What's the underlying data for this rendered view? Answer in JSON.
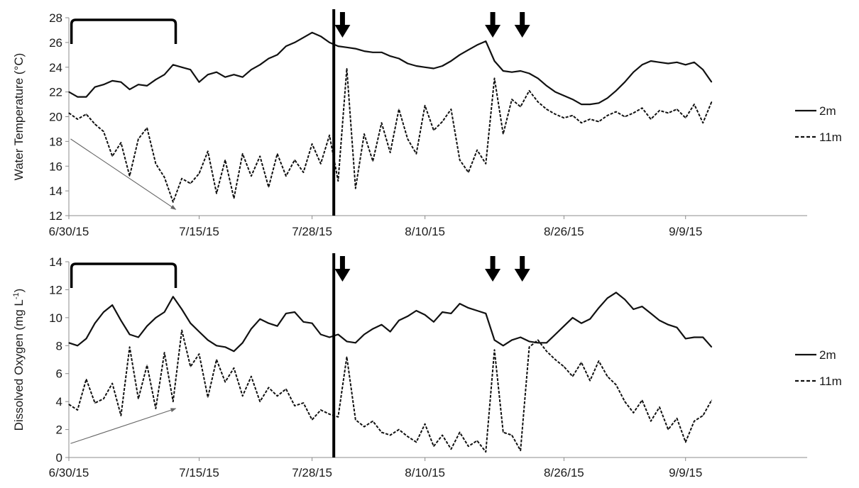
{
  "chart_data": [
    {
      "type": "line",
      "ylabel": "Water Temperature (°C)",
      "ylim": [
        12,
        28
      ],
      "yticks": [
        "12",
        "14",
        "16",
        "18",
        "20",
        "22",
        "24",
        "26",
        "28"
      ],
      "x_ticks": [
        "6/30/15",
        "7/15/15",
        "7/28/15",
        "8/10/15",
        "8/26/15",
        "9/9/15"
      ],
      "x_tick_days": [
        0,
        15,
        28,
        41,
        57,
        71
      ],
      "xlim_days": [
        0,
        85
      ],
      "grid": false,
      "legend_position": "right",
      "vline_day": 30.5,
      "arrow_days": [
        31.5,
        48.8,
        52.2
      ],
      "bracket_days": [
        0.3,
        12.3
      ],
      "series": [
        {
          "name": "2m",
          "style": "solid",
          "x": [
            0,
            1,
            2,
            3,
            4,
            5,
            6,
            7,
            8,
            9,
            10,
            11,
            12,
            13,
            14,
            15,
            16,
            17,
            18,
            19,
            20,
            21,
            22,
            23,
            24,
            25,
            26,
            27,
            28,
            29,
            30,
            31,
            32,
            33,
            34,
            35,
            36,
            37,
            38,
            39,
            40,
            41,
            42,
            43,
            44,
            45,
            46,
            47,
            48,
            49,
            50,
            51,
            52,
            53,
            54,
            55,
            56,
            57,
            58,
            59,
            60,
            61,
            62,
            63,
            64,
            65,
            66,
            67,
            68,
            69,
            70,
            71,
            72,
            73,
            74
          ],
          "y": [
            22.0,
            21.6,
            21.6,
            22.4,
            22.6,
            22.9,
            22.8,
            22.2,
            22.6,
            22.5,
            23.0,
            23.4,
            24.2,
            24.0,
            23.8,
            22.8,
            23.4,
            23.6,
            23.2,
            23.4,
            23.2,
            23.8,
            24.2,
            24.7,
            25.0,
            25.7,
            26.0,
            26.4,
            26.8,
            26.5,
            26.0,
            25.7,
            25.6,
            25.5,
            25.3,
            25.2,
            25.2,
            24.9,
            24.7,
            24.3,
            24.1,
            24.0,
            23.9,
            24.1,
            24.5,
            25.0,
            25.4,
            25.8,
            26.1,
            24.5,
            23.7,
            23.6,
            23.7,
            23.5,
            23.1,
            22.5,
            22.0,
            21.7,
            21.4,
            21.0,
            21.0,
            21.1,
            21.5,
            22.1,
            22.8,
            23.6,
            24.2,
            24.5,
            24.4,
            24.3,
            24.4,
            24.2,
            24.4,
            23.8,
            22.8
          ]
        },
        {
          "name": "11m",
          "style": "dashed",
          "x": [
            0,
            1,
            2,
            3,
            4,
            5,
            6,
            7,
            8,
            9,
            10,
            11,
            12,
            13,
            14,
            15,
            16,
            17,
            18,
            19,
            20,
            21,
            22,
            23,
            24,
            25,
            26,
            27,
            28,
            29,
            30,
            31,
            32,
            33,
            34,
            35,
            36,
            37,
            38,
            39,
            40,
            41,
            42,
            43,
            44,
            45,
            46,
            47,
            48,
            49,
            50,
            51,
            52,
            53,
            54,
            55,
            56,
            57,
            58,
            59,
            60,
            61,
            62,
            63,
            64,
            65,
            66,
            67,
            68,
            69,
            70,
            71,
            72,
            73,
            74
          ],
          "y": [
            20.3,
            19.8,
            20.2,
            19.4,
            18.8,
            16.8,
            17.9,
            15.2,
            18.2,
            19.1,
            16.2,
            15.1,
            13.1,
            15.0,
            14.6,
            15.4,
            17.2,
            13.8,
            16.5,
            13.4,
            17.0,
            15.2,
            16.8,
            14.3,
            17.0,
            15.2,
            16.5,
            15.5,
            17.8,
            16.2,
            18.5,
            14.8,
            23.9,
            14.2,
            18.6,
            16.4,
            19.5,
            17.1,
            20.6,
            18.2,
            17.0,
            20.9,
            18.9,
            19.6,
            20.6,
            16.5,
            15.5,
            17.3,
            16.2,
            23.1,
            18.6,
            21.4,
            20.8,
            22.1,
            21.2,
            20.6,
            20.2,
            19.9,
            20.1,
            19.5,
            19.8,
            19.6,
            20.1,
            20.4,
            20.0,
            20.3,
            20.7,
            19.8,
            20.5,
            20.3,
            20.6,
            19.9,
            21.0,
            19.5,
            21.2
          ]
        }
      ]
    },
    {
      "type": "line",
      "ylabel": "Dissolved Oxygen (mg L",
      "ylabel_sup": "-1",
      "ylabel_close": ")",
      "ylim": [
        0,
        14
      ],
      "yticks": [
        "0",
        "2",
        "4",
        "6",
        "8",
        "10",
        "12",
        "14"
      ],
      "x_ticks": [
        "6/30/15",
        "7/15/15",
        "7/28/15",
        "8/10/15",
        "8/26/15",
        "9/9/15"
      ],
      "x_tick_days": [
        0,
        15,
        28,
        41,
        57,
        71
      ],
      "xlim_days": [
        0,
        85
      ],
      "grid": false,
      "legend_position": "right",
      "vline_day": 30.5,
      "arrow_days": [
        31.5,
        48.8,
        52.2
      ],
      "bracket_days": [
        0.3,
        12.3
      ],
      "series": [
        {
          "name": "2m",
          "style": "solid",
          "x": [
            0,
            1,
            2,
            3,
            4,
            5,
            6,
            7,
            8,
            9,
            10,
            11,
            12,
            13,
            14,
            15,
            16,
            17,
            18,
            19,
            20,
            21,
            22,
            23,
            24,
            25,
            26,
            27,
            28,
            29,
            30,
            31,
            32,
            33,
            34,
            35,
            36,
            37,
            38,
            39,
            40,
            41,
            42,
            43,
            44,
            45,
            46,
            47,
            48,
            49,
            50,
            51,
            52,
            53,
            54,
            55,
            56,
            57,
            58,
            59,
            60,
            61,
            62,
            63,
            64,
            65,
            66,
            67,
            68,
            69,
            70,
            71,
            72,
            73,
            74
          ],
          "y": [
            8.2,
            8.0,
            8.5,
            9.6,
            10.4,
            10.9,
            9.8,
            8.8,
            8.6,
            9.4,
            10.0,
            10.4,
            11.5,
            10.6,
            9.6,
            9.0,
            8.4,
            8.0,
            7.9,
            7.6,
            8.2,
            9.2,
            9.9,
            9.6,
            9.4,
            10.3,
            10.4,
            9.7,
            9.6,
            8.8,
            8.6,
            8.8,
            8.3,
            8.2,
            8.8,
            9.2,
            9.5,
            9.0,
            9.8,
            10.1,
            10.5,
            10.2,
            9.7,
            10.4,
            10.3,
            11.0,
            10.7,
            10.5,
            10.3,
            8.4,
            8.0,
            8.4,
            8.6,
            8.3,
            8.2,
            8.2,
            8.8,
            9.4,
            10.0,
            9.6,
            9.9,
            10.7,
            11.4,
            11.8,
            11.3,
            10.6,
            10.8,
            10.3,
            9.8,
            9.5,
            9.3,
            8.5,
            8.6,
            8.6,
            7.9
          ]
        },
        {
          "name": "11m",
          "style": "dashed",
          "x": [
            0,
            1,
            2,
            3,
            4,
            5,
            6,
            7,
            8,
            9,
            10,
            11,
            12,
            13,
            14,
            15,
            16,
            17,
            18,
            19,
            20,
            21,
            22,
            23,
            24,
            25,
            26,
            27,
            28,
            29,
            30,
            31,
            32,
            33,
            34,
            35,
            36,
            37,
            38,
            39,
            40,
            41,
            42,
            43,
            44,
            45,
            46,
            47,
            48,
            49,
            50,
            51,
            52,
            53,
            54,
            55,
            56,
            57,
            58,
            59,
            60,
            61,
            62,
            63,
            64,
            65,
            66,
            67,
            68,
            69,
            70,
            71,
            72,
            73,
            74
          ],
          "y": [
            3.8,
            3.4,
            5.6,
            3.9,
            4.2,
            5.3,
            3.0,
            7.9,
            4.2,
            6.6,
            3.5,
            7.5,
            4.0,
            9.1,
            6.5,
            7.4,
            4.3,
            7.0,
            5.4,
            6.4,
            4.4,
            5.8,
            4.0,
            5.0,
            4.4,
            4.9,
            3.7,
            3.9,
            2.7,
            3.4,
            3.1,
            2.9,
            7.2,
            2.7,
            2.2,
            2.6,
            1.8,
            1.6,
            2.0,
            1.5,
            1.1,
            2.4,
            0.8,
            1.6,
            0.6,
            1.8,
            0.8,
            1.2,
            0.4,
            7.7,
            1.8,
            1.6,
            0.5,
            7.9,
            8.4,
            7.6,
            7.0,
            6.5,
            5.8,
            6.8,
            5.5,
            6.9,
            5.8,
            5.2,
            4.0,
            3.2,
            4.1,
            2.6,
            3.6,
            2.0,
            2.8,
            1.1,
            2.6,
            3.0,
            4.1
          ]
        }
      ]
    }
  ]
}
